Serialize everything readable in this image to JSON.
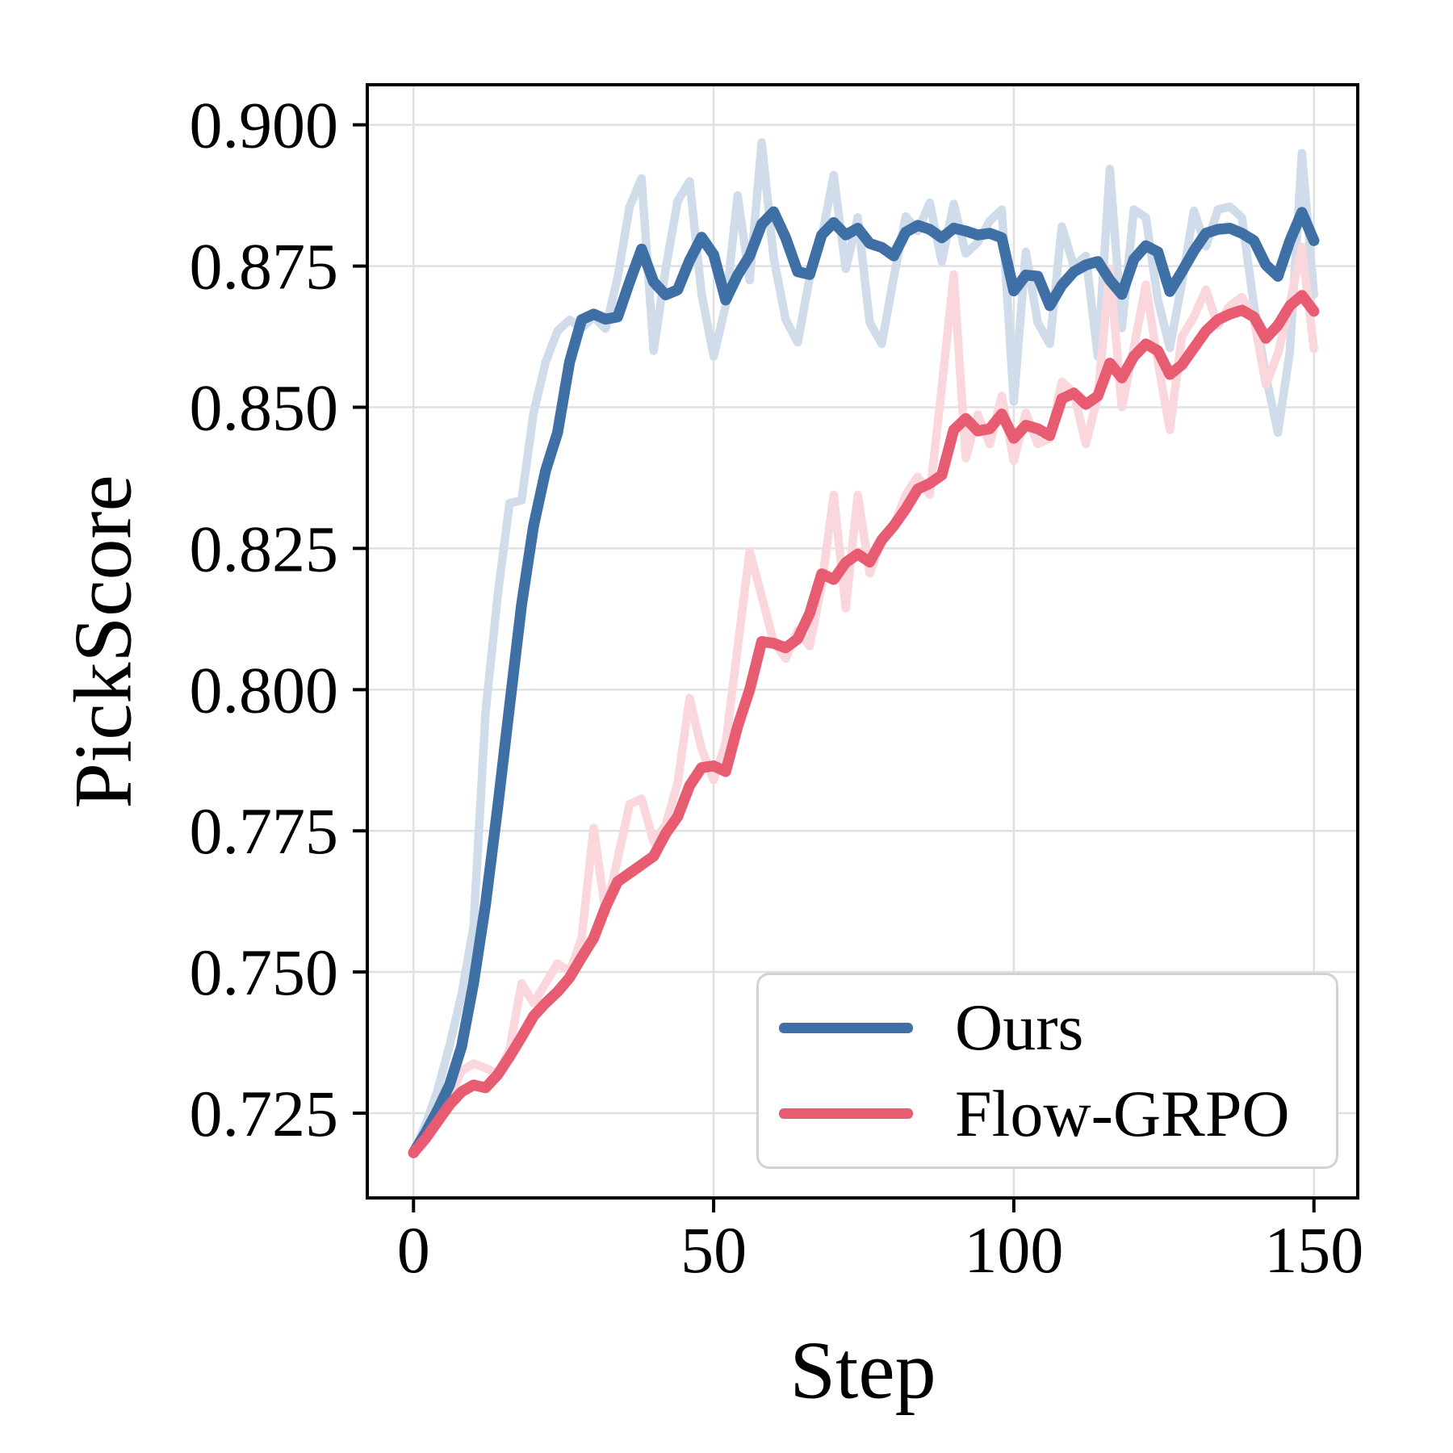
{
  "figure": {
    "background": "#ffffff"
  },
  "legend": {
    "entries": [
      {
        "label": "Ours",
        "color": "#3e70a6"
      },
      {
        "label": "Flow-GRPO",
        "color": "#e85c71"
      }
    ]
  },
  "chart_data": {
    "type": "line",
    "title": "",
    "xlabel": "Step",
    "ylabel": "PickScore",
    "grid": true,
    "grid_color": "#e0e0e0",
    "spine_color": "#000000",
    "legend_position": "lower right",
    "xlim": [
      -7.7,
      157.3
    ],
    "ylim": [
      0.71,
      0.9071
    ],
    "xticks": {
      "values": [
        0,
        50,
        100,
        150
      ],
      "labels": [
        "0",
        "50",
        "100",
        "150"
      ]
    },
    "yticks": {
      "values": [
        0.725,
        0.75,
        0.775,
        0.8,
        0.825,
        0.85,
        0.875,
        0.9
      ],
      "labels": [
        "0.725",
        "0.750",
        "0.775",
        "0.800",
        "0.825",
        "0.850",
        "0.875",
        "0.900"
      ]
    },
    "x": [
      0,
      2,
      4,
      6,
      8,
      10,
      12,
      14,
      16,
      18,
      20,
      22,
      24,
      26,
      28,
      30,
      32,
      34,
      36,
      38,
      40,
      42,
      44,
      46,
      48,
      50,
      52,
      54,
      56,
      58,
      60,
      62,
      64,
      66,
      68,
      70,
      72,
      74,
      76,
      78,
      80,
      82,
      84,
      86,
      88,
      90,
      92,
      94,
      96,
      98,
      100,
      102,
      104,
      106,
      108,
      110,
      112,
      114,
      116,
      118,
      120,
      122,
      124,
      126,
      128,
      130,
      132,
      134,
      136,
      138,
      140,
      142,
      144,
      146,
      148,
      150
    ],
    "series": [
      {
        "id": "ours-raw",
        "name": "Ours (raw)",
        "role": "raw",
        "color": "#d0dcea",
        "values": [
          0.718,
          0.723,
          0.729,
          0.737,
          0.746,
          0.758,
          0.796,
          0.8165,
          0.833,
          0.8335,
          0.849,
          0.858,
          0.8635,
          0.8655,
          0.864,
          0.866,
          0.8639,
          0.873,
          0.8855,
          0.8905,
          0.86,
          0.8745,
          0.8865,
          0.89,
          0.87,
          0.859,
          0.868,
          0.8875,
          0.8725,
          0.8969,
          0.8765,
          0.8655,
          0.8615,
          0.873,
          0.88,
          0.8911,
          0.8745,
          0.8836,
          0.865,
          0.8612,
          0.873,
          0.8838,
          0.8812,
          0.8862,
          0.8758,
          0.886,
          0.8772,
          0.8792,
          0.883,
          0.885,
          0.851,
          0.8775,
          0.865,
          0.8612,
          0.882,
          0.875,
          0.8768,
          0.859,
          0.8922,
          0.864,
          0.885,
          0.8836,
          0.869,
          0.8605,
          0.872,
          0.8848,
          0.8785,
          0.885,
          0.8855,
          0.8836,
          0.868,
          0.8555,
          0.8455,
          0.86,
          0.895,
          0.87
        ]
      },
      {
        "id": "flow-grpo-raw",
        "name": "Flow-GRPO (raw)",
        "role": "raw",
        "color": "#fad7dc",
        "values": [
          0.718,
          0.7215,
          0.7252,
          0.728,
          0.7325,
          0.7338,
          0.733,
          0.732,
          0.7362,
          0.748,
          0.7445,
          0.748,
          0.7515,
          0.75,
          0.756,
          0.7755,
          0.7605,
          0.77,
          0.7797,
          0.7807,
          0.773,
          0.776,
          0.7835,
          0.7985,
          0.7895,
          0.784,
          0.7905,
          0.8075,
          0.8245,
          0.8165,
          0.8085,
          0.8055,
          0.8105,
          0.8077,
          0.8185,
          0.8345,
          0.8144,
          0.8345,
          0.8206,
          0.8265,
          0.829,
          0.8345,
          0.8377,
          0.8345,
          0.8535,
          0.8735,
          0.841,
          0.8487,
          0.8435,
          0.852,
          0.8405,
          0.849,
          0.8435,
          0.8445,
          0.8545,
          0.8525,
          0.8435,
          0.852,
          0.8745,
          0.85,
          0.8605,
          0.8717,
          0.858,
          0.846,
          0.8625,
          0.866,
          0.8708,
          0.8645,
          0.868,
          0.8695,
          0.8655,
          0.854,
          0.8595,
          0.8685,
          0.8784,
          0.8603
        ]
      },
      {
        "id": "ours",
        "name": "Ours",
        "role": "smoothed",
        "color": "#3e70a6",
        "values": [
          0.718,
          0.7215,
          0.7255,
          0.73,
          0.7368,
          0.748,
          0.762,
          0.779,
          0.797,
          0.815,
          0.829,
          0.8388,
          0.8455,
          0.858,
          0.8655,
          0.8665,
          0.8656,
          0.866,
          0.8722,
          0.878,
          0.8722,
          0.8699,
          0.8708,
          0.876,
          0.8801,
          0.877,
          0.869,
          0.8734,
          0.8768,
          0.8824,
          0.8846,
          0.88,
          0.874,
          0.8735,
          0.8805,
          0.8827,
          0.8805,
          0.8817,
          0.879,
          0.8783,
          0.8768,
          0.881,
          0.8822,
          0.8815,
          0.88,
          0.8817,
          0.8812,
          0.8805,
          0.8808,
          0.88,
          0.8706,
          0.8734,
          0.8732,
          0.868,
          0.8716,
          0.874,
          0.8752,
          0.8758,
          0.8725,
          0.87,
          0.8762,
          0.8786,
          0.8775,
          0.8705,
          0.874,
          0.8777,
          0.8808,
          0.8815,
          0.8817,
          0.8808,
          0.8795,
          0.8752,
          0.8732,
          0.8795,
          0.8845,
          0.8795
        ]
      },
      {
        "id": "flow-grpo",
        "name": "Flow-GRPO",
        "role": "smoothed",
        "color": "#e85c71",
        "values": [
          0.718,
          0.7205,
          0.7235,
          0.7265,
          0.7288,
          0.73,
          0.7295,
          0.7318,
          0.735,
          0.7385,
          0.7422,
          0.7445,
          0.7465,
          0.749,
          0.7526,
          0.756,
          0.7615,
          0.766,
          0.7675,
          0.769,
          0.7705,
          0.7745,
          0.7775,
          0.783,
          0.7862,
          0.7865,
          0.7855,
          0.7935,
          0.8,
          0.8085,
          0.8082,
          0.8074,
          0.809,
          0.8135,
          0.8205,
          0.8195,
          0.8225,
          0.824,
          0.8226,
          0.8265,
          0.829,
          0.832,
          0.8355,
          0.8365,
          0.838,
          0.846,
          0.848,
          0.8458,
          0.8462,
          0.8488,
          0.8445,
          0.8468,
          0.8462,
          0.845,
          0.8515,
          0.8525,
          0.8505,
          0.852,
          0.8578,
          0.8552,
          0.859,
          0.8612,
          0.86,
          0.8558,
          0.8575,
          0.8605,
          0.8635,
          0.8655,
          0.8665,
          0.8672,
          0.866,
          0.8622,
          0.8645,
          0.868,
          0.8698,
          0.867
        ]
      }
    ]
  }
}
